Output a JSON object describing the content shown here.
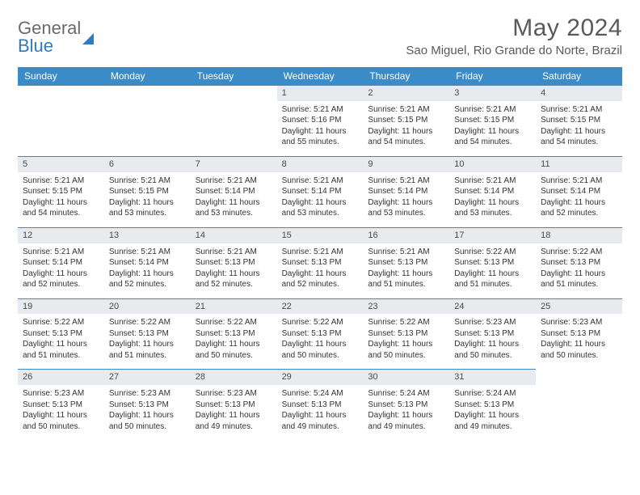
{
  "brand": {
    "general": "General",
    "blue": "Blue"
  },
  "title": "May 2024",
  "location": "Sao Miguel, Rio Grande do Norte, Brazil",
  "colors": {
    "header_bg": "#3b8bc9",
    "header_text": "#ffffff",
    "daynum_bg": "#e7ebef",
    "row_border": "#3b8bc9",
    "body_text": "#333333",
    "logo_gray": "#6a6a6a",
    "logo_blue": "#2f7bc0"
  },
  "weekdays": [
    "Sunday",
    "Monday",
    "Tuesday",
    "Wednesday",
    "Thursday",
    "Friday",
    "Saturday"
  ],
  "empty_leading": 3,
  "days": [
    {
      "n": "1",
      "sr": "Sunrise: 5:21 AM",
      "ss": "Sunset: 5:16 PM",
      "dl": "Daylight: 11 hours and 55 minutes."
    },
    {
      "n": "2",
      "sr": "Sunrise: 5:21 AM",
      "ss": "Sunset: 5:15 PM",
      "dl": "Daylight: 11 hours and 54 minutes."
    },
    {
      "n": "3",
      "sr": "Sunrise: 5:21 AM",
      "ss": "Sunset: 5:15 PM",
      "dl": "Daylight: 11 hours and 54 minutes."
    },
    {
      "n": "4",
      "sr": "Sunrise: 5:21 AM",
      "ss": "Sunset: 5:15 PM",
      "dl": "Daylight: 11 hours and 54 minutes."
    },
    {
      "n": "5",
      "sr": "Sunrise: 5:21 AM",
      "ss": "Sunset: 5:15 PM",
      "dl": "Daylight: 11 hours and 54 minutes."
    },
    {
      "n": "6",
      "sr": "Sunrise: 5:21 AM",
      "ss": "Sunset: 5:15 PM",
      "dl": "Daylight: 11 hours and 53 minutes."
    },
    {
      "n": "7",
      "sr": "Sunrise: 5:21 AM",
      "ss": "Sunset: 5:14 PM",
      "dl": "Daylight: 11 hours and 53 minutes."
    },
    {
      "n": "8",
      "sr": "Sunrise: 5:21 AM",
      "ss": "Sunset: 5:14 PM",
      "dl": "Daylight: 11 hours and 53 minutes."
    },
    {
      "n": "9",
      "sr": "Sunrise: 5:21 AM",
      "ss": "Sunset: 5:14 PM",
      "dl": "Daylight: 11 hours and 53 minutes."
    },
    {
      "n": "10",
      "sr": "Sunrise: 5:21 AM",
      "ss": "Sunset: 5:14 PM",
      "dl": "Daylight: 11 hours and 53 minutes."
    },
    {
      "n": "11",
      "sr": "Sunrise: 5:21 AM",
      "ss": "Sunset: 5:14 PM",
      "dl": "Daylight: 11 hours and 52 minutes."
    },
    {
      "n": "12",
      "sr": "Sunrise: 5:21 AM",
      "ss": "Sunset: 5:14 PM",
      "dl": "Daylight: 11 hours and 52 minutes."
    },
    {
      "n": "13",
      "sr": "Sunrise: 5:21 AM",
      "ss": "Sunset: 5:14 PM",
      "dl": "Daylight: 11 hours and 52 minutes."
    },
    {
      "n": "14",
      "sr": "Sunrise: 5:21 AM",
      "ss": "Sunset: 5:13 PM",
      "dl": "Daylight: 11 hours and 52 minutes."
    },
    {
      "n": "15",
      "sr": "Sunrise: 5:21 AM",
      "ss": "Sunset: 5:13 PM",
      "dl": "Daylight: 11 hours and 52 minutes."
    },
    {
      "n": "16",
      "sr": "Sunrise: 5:21 AM",
      "ss": "Sunset: 5:13 PM",
      "dl": "Daylight: 11 hours and 51 minutes."
    },
    {
      "n": "17",
      "sr": "Sunrise: 5:22 AM",
      "ss": "Sunset: 5:13 PM",
      "dl": "Daylight: 11 hours and 51 minutes."
    },
    {
      "n": "18",
      "sr": "Sunrise: 5:22 AM",
      "ss": "Sunset: 5:13 PM",
      "dl": "Daylight: 11 hours and 51 minutes."
    },
    {
      "n": "19",
      "sr": "Sunrise: 5:22 AM",
      "ss": "Sunset: 5:13 PM",
      "dl": "Daylight: 11 hours and 51 minutes."
    },
    {
      "n": "20",
      "sr": "Sunrise: 5:22 AM",
      "ss": "Sunset: 5:13 PM",
      "dl": "Daylight: 11 hours and 51 minutes."
    },
    {
      "n": "21",
      "sr": "Sunrise: 5:22 AM",
      "ss": "Sunset: 5:13 PM",
      "dl": "Daylight: 11 hours and 50 minutes."
    },
    {
      "n": "22",
      "sr": "Sunrise: 5:22 AM",
      "ss": "Sunset: 5:13 PM",
      "dl": "Daylight: 11 hours and 50 minutes."
    },
    {
      "n": "23",
      "sr": "Sunrise: 5:22 AM",
      "ss": "Sunset: 5:13 PM",
      "dl": "Daylight: 11 hours and 50 minutes."
    },
    {
      "n": "24",
      "sr": "Sunrise: 5:23 AM",
      "ss": "Sunset: 5:13 PM",
      "dl": "Daylight: 11 hours and 50 minutes."
    },
    {
      "n": "25",
      "sr": "Sunrise: 5:23 AM",
      "ss": "Sunset: 5:13 PM",
      "dl": "Daylight: 11 hours and 50 minutes."
    },
    {
      "n": "26",
      "sr": "Sunrise: 5:23 AM",
      "ss": "Sunset: 5:13 PM",
      "dl": "Daylight: 11 hours and 50 minutes."
    },
    {
      "n": "27",
      "sr": "Sunrise: 5:23 AM",
      "ss": "Sunset: 5:13 PM",
      "dl": "Daylight: 11 hours and 50 minutes."
    },
    {
      "n": "28",
      "sr": "Sunrise: 5:23 AM",
      "ss": "Sunset: 5:13 PM",
      "dl": "Daylight: 11 hours and 49 minutes."
    },
    {
      "n": "29",
      "sr": "Sunrise: 5:24 AM",
      "ss": "Sunset: 5:13 PM",
      "dl": "Daylight: 11 hours and 49 minutes."
    },
    {
      "n": "30",
      "sr": "Sunrise: 5:24 AM",
      "ss": "Sunset: 5:13 PM",
      "dl": "Daylight: 11 hours and 49 minutes."
    },
    {
      "n": "31",
      "sr": "Sunrise: 5:24 AM",
      "ss": "Sunset: 5:13 PM",
      "dl": "Daylight: 11 hours and 49 minutes."
    }
  ]
}
